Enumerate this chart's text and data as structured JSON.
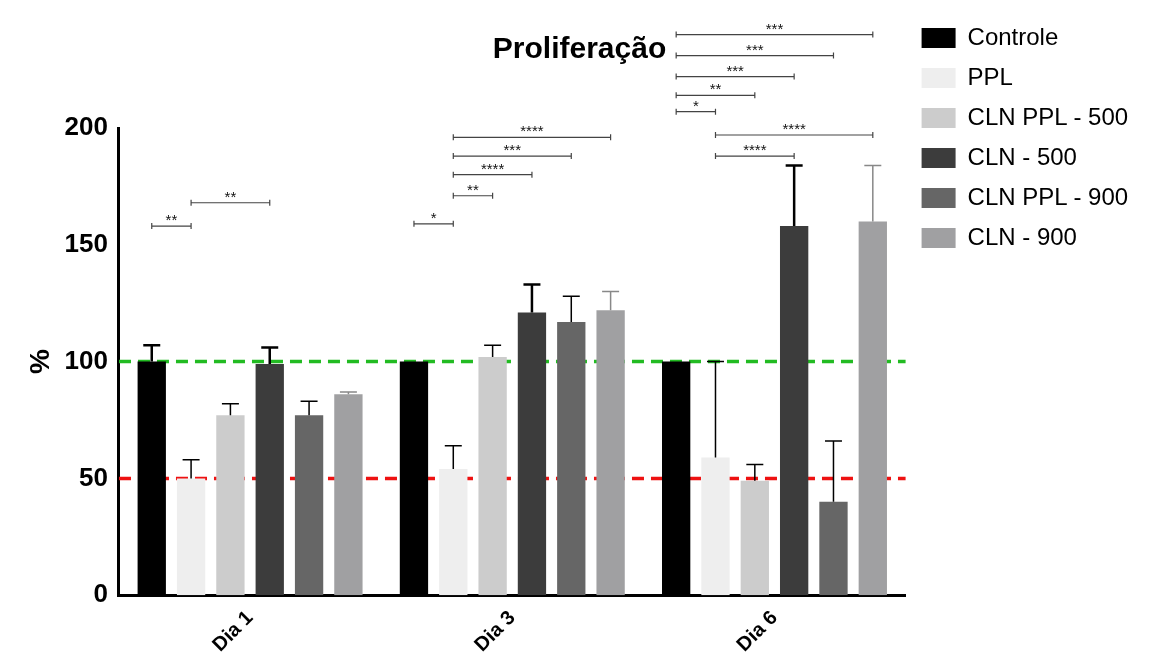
{
  "chart_data": {
    "type": "bar",
    "title": "Proliferação",
    "ylabel": "%",
    "categories": [
      "Dia 1",
      "Dia 3",
      "Dia 6"
    ],
    "series": [
      {
        "name": "Controle",
        "color": "#000000",
        "values": [
          100,
          100,
          100
        ],
        "errors": [
          [
            100,
            107
          ],
          null,
          null
        ]
      },
      {
        "name": "PPL",
        "color": "#eeeeee",
        "values": [
          50,
          54,
          59
        ],
        "errors": [
          [
            50,
            58
          ],
          [
            54,
            64
          ],
          [
            59,
            100
          ]
        ]
      },
      {
        "name": "CLN PPL - 500",
        "color": "#cccccc",
        "values": [
          77,
          102,
          49
        ],
        "errors": [
          [
            77,
            82
          ],
          [
            102,
            107
          ],
          [
            49,
            56
          ]
        ]
      },
      {
        "name": "CLN - 500",
        "color": "#3c3c3c",
        "values": [
          99,
          121,
          158
        ],
        "errors": [
          [
            99,
            106
          ],
          [
            121,
            133
          ],
          [
            158,
            184
          ]
        ]
      },
      {
        "name": "CLN PPL - 900",
        "color": "#666666",
        "values": [
          77,
          117,
          40
        ],
        "errors": [
          [
            77,
            83
          ],
          [
            117,
            128
          ],
          [
            40,
            66
          ]
        ]
      },
      {
        "name": "CLN - 900",
        "color": "#a0a0a2",
        "values": [
          86,
          122,
          160
        ],
        "errors": [
          [
            86,
            87
          ],
          [
            122,
            130
          ],
          [
            160,
            184
          ]
        ]
      }
    ],
    "ylim": [
      0,
      200
    ],
    "yticks": [
      0,
      50,
      100,
      150,
      200
    ],
    "grid": false,
    "legend": "right",
    "ref_lines": [
      {
        "axis": "y",
        "value": 100,
        "color": "#22bb22",
        "line_style": "dashed"
      },
      {
        "axis": "y",
        "value": 50,
        "color": "#ee1111",
        "line_style": "dashed"
      }
    ],
    "annotations": [
      "**",
      "**",
      "*",
      "**",
      "****",
      "***",
      "****",
      "*",
      "**",
      "***",
      "***",
      "***",
      "****",
      "****"
    ]
  }
}
